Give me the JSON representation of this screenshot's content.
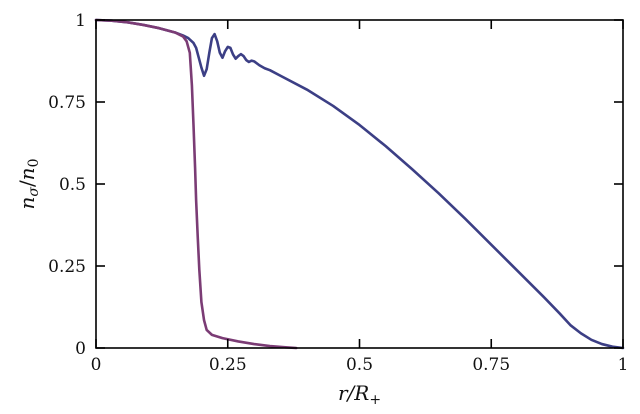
{
  "chart_data": {
    "type": "line",
    "title": "",
    "xlabel": {
      "base": "r/R",
      "sub": "+"
    },
    "ylabel": {
      "n": "n",
      "n_sub": "σ",
      "slash": "/",
      "d": "n",
      "d_sub": "0"
    },
    "xlim": [
      0,
      1
    ],
    "ylim": [
      0,
      1
    ],
    "xticks": [
      {
        "value": 0,
        "label": "0"
      },
      {
        "value": 0.25,
        "label": "0.25"
      },
      {
        "value": 0.5,
        "label": "0.5"
      },
      {
        "value": 0.75,
        "label": "0.75"
      },
      {
        "value": 1,
        "label": "1"
      }
    ],
    "yticks": [
      {
        "value": 0,
        "label": "0"
      },
      {
        "value": 0.25,
        "label": "0.25"
      },
      {
        "value": 0.5,
        "label": "0.5"
      },
      {
        "value": 0.75,
        "label": "0.75"
      },
      {
        "value": 1,
        "label": "1"
      }
    ],
    "grid": false,
    "series": [
      {
        "color": "#3c3f85",
        "points": [
          [
            0.0,
            1.0
          ],
          [
            0.03,
            0.998
          ],
          [
            0.06,
            0.993
          ],
          [
            0.09,
            0.985
          ],
          [
            0.12,
            0.975
          ],
          [
            0.15,
            0.962
          ],
          [
            0.165,
            0.953
          ],
          [
            0.175,
            0.945
          ],
          [
            0.185,
            0.93
          ],
          [
            0.19,
            0.915
          ],
          [
            0.195,
            0.885
          ],
          [
            0.2,
            0.855
          ],
          [
            0.205,
            0.83
          ],
          [
            0.21,
            0.85
          ],
          [
            0.215,
            0.9
          ],
          [
            0.22,
            0.945
          ],
          [
            0.225,
            0.957
          ],
          [
            0.23,
            0.935
          ],
          [
            0.235,
            0.9
          ],
          [
            0.24,
            0.885
          ],
          [
            0.245,
            0.905
          ],
          [
            0.25,
            0.918
          ],
          [
            0.255,
            0.915
          ],
          [
            0.26,
            0.895
          ],
          [
            0.265,
            0.882
          ],
          [
            0.27,
            0.89
          ],
          [
            0.275,
            0.896
          ],
          [
            0.28,
            0.89
          ],
          [
            0.285,
            0.878
          ],
          [
            0.29,
            0.872
          ],
          [
            0.295,
            0.876
          ],
          [
            0.3,
            0.874
          ],
          [
            0.31,
            0.862
          ],
          [
            0.32,
            0.853
          ],
          [
            0.33,
            0.847
          ],
          [
            0.35,
            0.83
          ],
          [
            0.4,
            0.788
          ],
          [
            0.45,
            0.738
          ],
          [
            0.5,
            0.68
          ],
          [
            0.55,
            0.615
          ],
          [
            0.6,
            0.545
          ],
          [
            0.65,
            0.472
          ],
          [
            0.7,
            0.395
          ],
          [
            0.75,
            0.315
          ],
          [
            0.8,
            0.235
          ],
          [
            0.85,
            0.155
          ],
          [
            0.88,
            0.105
          ],
          [
            0.9,
            0.07
          ],
          [
            0.92,
            0.045
          ],
          [
            0.94,
            0.025
          ],
          [
            0.96,
            0.012
          ],
          [
            0.98,
            0.004
          ],
          [
            1.0,
            0.0
          ]
        ]
      },
      {
        "color": "#7b3c75",
        "points": [
          [
            0.0,
            1.0
          ],
          [
            0.03,
            0.998
          ],
          [
            0.06,
            0.993
          ],
          [
            0.09,
            0.985
          ],
          [
            0.12,
            0.975
          ],
          [
            0.15,
            0.962
          ],
          [
            0.165,
            0.95
          ],
          [
            0.172,
            0.935
          ],
          [
            0.178,
            0.9
          ],
          [
            0.182,
            0.8
          ],
          [
            0.185,
            0.68
          ],
          [
            0.188,
            0.55
          ],
          [
            0.19,
            0.45
          ],
          [
            0.193,
            0.34
          ],
          [
            0.196,
            0.24
          ],
          [
            0.2,
            0.14
          ],
          [
            0.205,
            0.085
          ],
          [
            0.21,
            0.055
          ],
          [
            0.22,
            0.04
          ],
          [
            0.24,
            0.03
          ],
          [
            0.27,
            0.02
          ],
          [
            0.3,
            0.012
          ],
          [
            0.33,
            0.006
          ],
          [
            0.36,
            0.002
          ],
          [
            0.38,
            0.0
          ]
        ]
      }
    ]
  }
}
